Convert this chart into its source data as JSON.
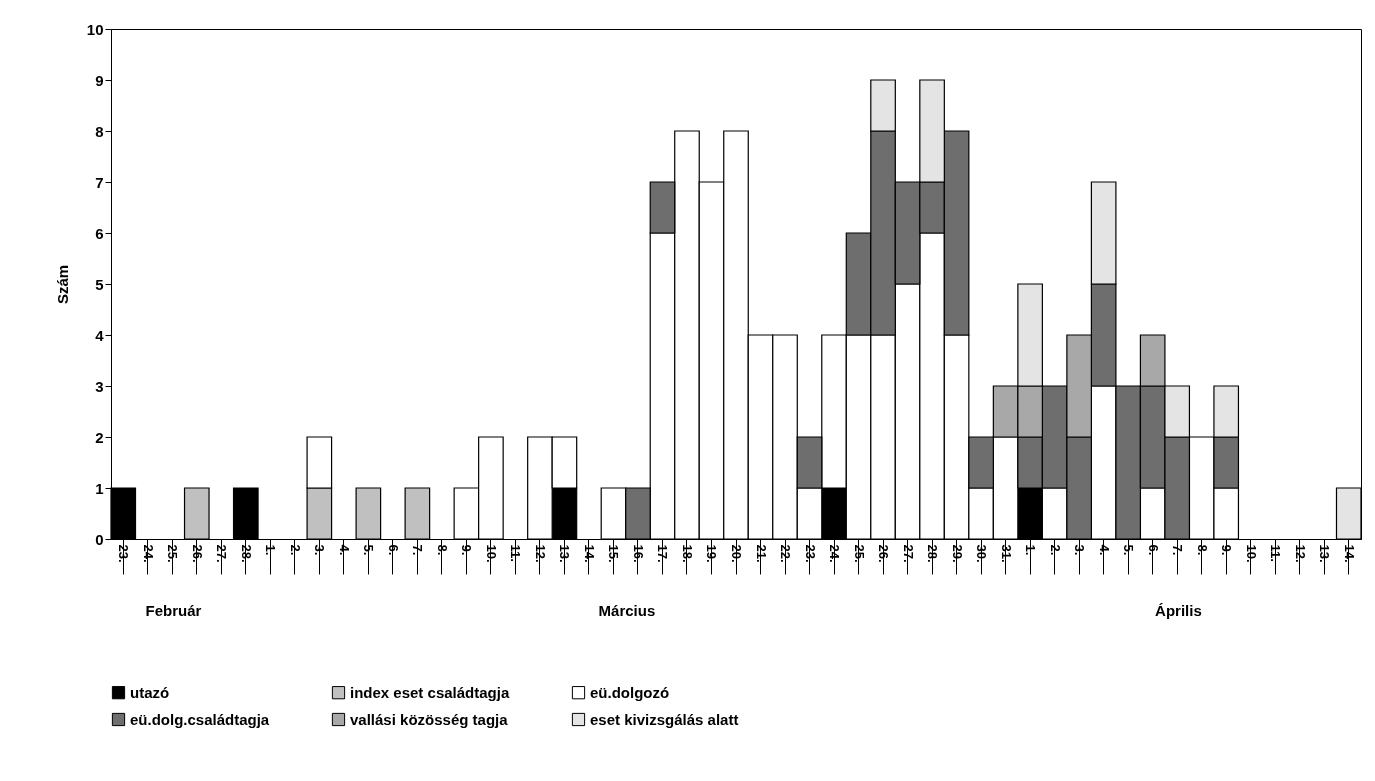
{
  "chart_data": {
    "type": "bar",
    "stacked": true,
    "ylabel": "Szám",
    "ylim": [
      0,
      10
    ],
    "yticks": [
      0,
      1,
      2,
      3,
      4,
      5,
      6,
      7,
      8,
      9,
      10
    ],
    "grid": false,
    "legend": "bottom",
    "categories": [
      "23.",
      "24.",
      "25.",
      "26.",
      "27.",
      "28.",
      "1.",
      "2.",
      "3.",
      "4.",
      "5.",
      "6.",
      "7.",
      "8.",
      "9.",
      "10.",
      "11.",
      "12.",
      "13.",
      "14.",
      "15.",
      "16.",
      "17.",
      "18.",
      "19.",
      "20.",
      "21.",
      "22.",
      "23.",
      "24.",
      "25.",
      "26.",
      "27.",
      "28.",
      "29.",
      "30.",
      "31.",
      "1.",
      "2.",
      "3.",
      "4.",
      "5.",
      "6.",
      "7.",
      "8.",
      "9.",
      "10.",
      "11.",
      "12.",
      "13.",
      "14."
    ],
    "series": [
      {
        "name": "utazó",
        "color": "#000000",
        "values": [
          1,
          null,
          null,
          null,
          null,
          1,
          null,
          null,
          null,
          null,
          null,
          null,
          null,
          null,
          null,
          null,
          null,
          null,
          1,
          null,
          null,
          null,
          null,
          null,
          null,
          null,
          null,
          null,
          null,
          1,
          null,
          null,
          null,
          null,
          null,
          null,
          null,
          1,
          null,
          null,
          null,
          null,
          null,
          null,
          null,
          null,
          null,
          null,
          null,
          null,
          null
        ]
      },
      {
        "name": "index eset családtagja",
        "color": "#c0c0c0",
        "values": [
          null,
          null,
          null,
          1,
          null,
          null,
          null,
          null,
          1,
          null,
          1,
          null,
          1,
          null,
          null,
          null,
          null,
          null,
          null,
          null,
          null,
          null,
          null,
          null,
          null,
          null,
          null,
          null,
          null,
          null,
          null,
          null,
          null,
          null,
          null,
          null,
          null,
          null,
          null,
          null,
          null,
          null,
          null,
          null,
          null,
          null,
          null,
          null,
          null,
          null,
          null
        ]
      },
      {
        "name": "eü.dolgozó",
        "color": "#ffffff",
        "values": [
          null,
          null,
          null,
          null,
          null,
          null,
          null,
          null,
          1,
          null,
          null,
          null,
          null,
          null,
          1,
          2,
          null,
          2,
          1,
          null,
          1,
          null,
          6,
          8,
          7,
          8,
          4,
          4,
          1,
          3,
          4,
          4,
          5,
          6,
          4,
          1,
          2,
          null,
          1,
          null,
          3,
          null,
          1,
          null,
          2,
          1,
          null,
          null,
          null,
          null,
          null
        ]
      },
      {
        "name": "eü.dolg.családtagja",
        "color": "#6e6e6e",
        "values": [
          null,
          null,
          null,
          null,
          null,
          null,
          null,
          null,
          null,
          null,
          null,
          null,
          null,
          null,
          null,
          null,
          null,
          null,
          null,
          null,
          null,
          1,
          1,
          null,
          null,
          null,
          null,
          null,
          1,
          null,
          2,
          4,
          2,
          1,
          4,
          1,
          null,
          1,
          2,
          2,
          2,
          3,
          2,
          2,
          null,
          1,
          null,
          null,
          null,
          null,
          null
        ]
      },
      {
        "name": "vallási közösség tagja",
        "color": "#a8a8a8",
        "values": [
          null,
          null,
          null,
          null,
          null,
          null,
          null,
          null,
          null,
          null,
          null,
          null,
          null,
          null,
          null,
          null,
          null,
          null,
          null,
          null,
          null,
          null,
          null,
          null,
          null,
          null,
          null,
          null,
          null,
          null,
          null,
          null,
          null,
          null,
          null,
          null,
          1,
          1,
          null,
          2,
          null,
          null,
          1,
          null,
          null,
          null,
          null,
          null,
          null,
          null,
          null
        ]
      },
      {
        "name": "eset kivizsgálás alatt",
        "color": "#e4e4e4",
        "values": [
          null,
          null,
          null,
          null,
          null,
          null,
          null,
          null,
          null,
          null,
          null,
          null,
          null,
          null,
          null,
          null,
          null,
          null,
          null,
          null,
          null,
          null,
          null,
          null,
          null,
          null,
          null,
          null,
          null,
          null,
          null,
          1,
          null,
          2,
          null,
          null,
          null,
          2,
          null,
          null,
          2,
          null,
          null,
          1,
          null,
          1,
          null,
          null,
          null,
          null,
          1
        ]
      }
    ],
    "annotations": [
      "Február",
      "Március",
      "Április"
    ]
  }
}
